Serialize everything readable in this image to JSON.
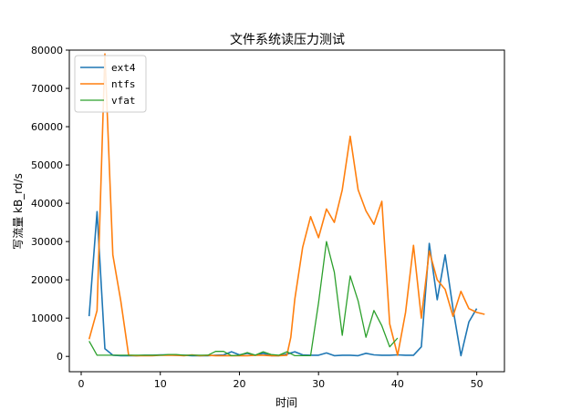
{
  "chart_data": {
    "type": "line",
    "title": "文件系统读压力测试",
    "xlabel": "时间",
    "ylabel": "写流量 kB_rd/s",
    "xlim": [
      -1.5,
      53.5
    ],
    "ylim": [
      -4000,
      80000
    ],
    "x_ticks": [
      0,
      10,
      20,
      30,
      40,
      50
    ],
    "y_ticks": [
      0,
      10000,
      20000,
      30000,
      40000,
      50000,
      60000,
      70000,
      80000
    ],
    "grid": false,
    "legend_position": "top-left",
    "series": [
      {
        "name": "ext4",
        "color": "#1f77b4",
        "x": [
          1,
          2,
          3,
          4,
          5,
          6,
          7,
          8,
          9,
          10,
          11,
          12,
          13,
          14,
          15,
          16,
          17,
          18,
          19,
          20,
          21,
          22,
          23,
          24,
          25,
          26,
          27,
          28,
          29,
          30,
          31,
          32,
          33,
          34,
          35,
          36,
          37,
          38,
          39,
          40,
          41,
          42,
          43,
          44,
          45,
          46,
          47,
          48,
          49,
          50
        ],
        "y": [
          10500,
          37800,
          2000,
          300,
          200,
          200,
          200,
          300,
          300,
          400,
          400,
          300,
          300,
          200,
          200,
          200,
          300,
          400,
          1200,
          400,
          800,
          300,
          800,
          200,
          200,
          600,
          1200,
          400,
          300,
          300,
          900,
          200,
          300,
          300,
          200,
          800,
          400,
          300,
          300,
          400,
          300,
          300,
          2500,
          29500,
          14800,
          26500,
          12500,
          200,
          9000,
          12500
        ]
      },
      {
        "name": "ntfs",
        "color": "#ff7f0e",
        "x": [
          1,
          2,
          3,
          4,
          5,
          6,
          7,
          8,
          9,
          10,
          11,
          12,
          13,
          14,
          15,
          16,
          17,
          18,
          19,
          20,
          21,
          22,
          23,
          24,
          25,
          26,
          26.5,
          27,
          28,
          29,
          30,
          31,
          32,
          33,
          34,
          35,
          36,
          37,
          38,
          39,
          40,
          41,
          42,
          43,
          44,
          45,
          46,
          47,
          48,
          49,
          50,
          51
        ],
        "y": [
          4500,
          12000,
          79000,
          26500,
          14500,
          300,
          200,
          200,
          200,
          300,
          300,
          300,
          200,
          400,
          200,
          300,
          200,
          200,
          200,
          200,
          200,
          300,
          300,
          200,
          200,
          300,
          5000,
          15000,
          28500,
          36500,
          31000,
          38500,
          35000,
          43500,
          57500,
          43500,
          38000,
          34500,
          40500,
          8500,
          300,
          11500,
          29000,
          10000,
          27500,
          20000,
          17500,
          10500,
          17000,
          12500,
          11500,
          11000
        ]
      },
      {
        "name": "vfat",
        "color": "#2ca02c",
        "x": [
          1,
          2,
          3,
          4,
          5,
          6,
          7,
          8,
          9,
          10,
          11,
          12,
          13,
          14,
          15,
          16,
          17,
          18,
          19,
          20,
          21,
          22,
          23,
          24,
          25,
          26,
          27,
          28,
          29,
          30,
          31,
          32,
          33,
          34,
          35,
          36,
          37,
          38,
          39,
          40
        ],
        "y": [
          4000,
          300,
          300,
          300,
          300,
          300,
          300,
          300,
          300,
          300,
          500,
          500,
          300,
          300,
          300,
          300,
          1300,
          1300,
          200,
          300,
          1000,
          300,
          1200,
          500,
          300,
          1200,
          200,
          200,
          200,
          14000,
          30000,
          22000,
          5500,
          21000,
          14500,
          5000,
          12000,
          8000,
          2500,
          4800
        ]
      }
    ]
  }
}
